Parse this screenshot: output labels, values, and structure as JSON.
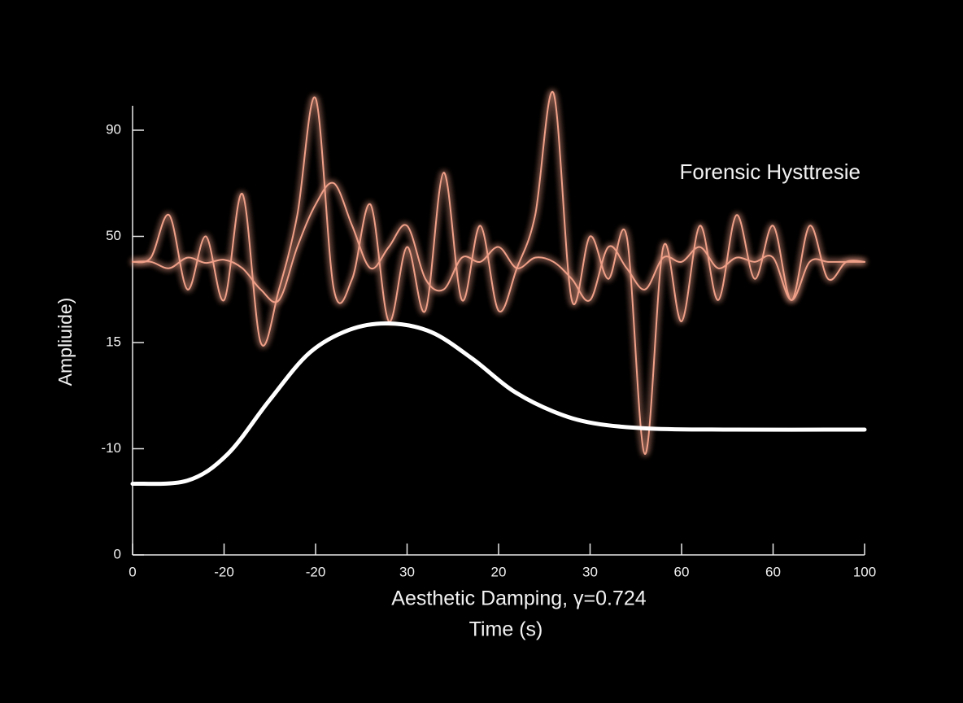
{
  "chart_data": {
    "type": "line",
    "annotation": "Forensic Hysttresie",
    "subtitle": "Aesthetic Damping, γ=0.724",
    "xlabel": "Time (s)",
    "ylabel": "Ampliuide)",
    "xlim": [
      0,
      8
    ],
    "xticks": [
      0,
      {
        "value": 1,
        "label": "-20"
      },
      {
        "value": 2,
        "label": "-20"
      },
      {
        "value": 3,
        "label": "30"
      },
      {
        "value": 4,
        "label": "20"
      },
      {
        "value": 5,
        "label": "30"
      },
      {
        "value": 6,
        "label": "60"
      },
      {
        "value": 7,
        "label": "60"
      },
      {
        "value": 8,
        "label": "100"
      }
    ],
    "ylim": [
      0,
      4
    ],
    "yticks": [
      0,
      {
        "value": 1,
        "label": "-10"
      },
      {
        "value": 2,
        "label": "15"
      },
      {
        "value": 3,
        "label": "50"
      },
      {
        "value": 4,
        "label": "90"
      }
    ],
    "series": [
      {
        "color": "#f0a088",
        "glow": true,
        "x": [
          0,
          0.2,
          0.4,
          0.6,
          0.8,
          1.0,
          1.2,
          1.4,
          1.6,
          1.8,
          2.0,
          2.2,
          2.4,
          2.6,
          2.8,
          3.0,
          3.2,
          3.4,
          3.6,
          3.8,
          4.0,
          4.2,
          4.4,
          4.6,
          4.8,
          5.0,
          5.2,
          5.4,
          5.6,
          5.8,
          6.0,
          6.2,
          6.4,
          6.6,
          6.8,
          7.0,
          7.2,
          7.4,
          7.6,
          7.8,
          8.0
        ],
        "values": [
          2.76,
          2.8,
          3.2,
          2.5,
          3.0,
          2.4,
          3.4,
          2.0,
          2.5,
          3.2,
          4.3,
          2.5,
          2.6,
          3.3,
          2.2,
          2.9,
          2.3,
          3.6,
          2.4,
          3.1,
          2.3,
          2.7,
          3.2,
          4.35,
          2.4,
          3.0,
          2.6,
          3.0,
          0.95,
          2.9,
          2.2,
          3.1,
          2.4,
          3.2,
          2.6,
          3.1,
          2.4,
          3.1,
          2.6,
          2.76,
          2.76
        ]
      },
      {
        "color": "#f0a088",
        "glow": true,
        "x": [
          0,
          0.2,
          0.4,
          0.6,
          0.8,
          1.0,
          1.2,
          1.4,
          1.6,
          1.8,
          2.0,
          2.2,
          2.4,
          2.6,
          2.8,
          3.0,
          3.2,
          3.4,
          3.6,
          3.8,
          4.0,
          4.2,
          4.4,
          4.6,
          4.8,
          5.0,
          5.2,
          5.4,
          5.6,
          5.8,
          6.0,
          6.2,
          6.4,
          6.6,
          6.8,
          7.0,
          7.2,
          7.4,
          7.6,
          7.8,
          8.0
        ],
        "values": [
          2.76,
          2.76,
          2.7,
          2.8,
          2.75,
          2.78,
          2.7,
          2.5,
          2.4,
          2.9,
          3.3,
          3.5,
          3.1,
          2.7,
          2.9,
          3.1,
          2.6,
          2.5,
          2.8,
          2.76,
          2.9,
          2.7,
          2.8,
          2.76,
          2.6,
          2.4,
          2.9,
          2.7,
          2.5,
          2.8,
          2.76,
          2.9,
          2.7,
          2.8,
          2.76,
          2.8,
          2.4,
          2.76,
          2.76,
          2.76,
          2.76
        ]
      },
      {
        "color": "#ffffff",
        "glow": false,
        "x": [
          0,
          0.6,
          1.04,
          1.49,
          1.93,
          2.37,
          2.8,
          3.26,
          3.71,
          4.15,
          4.6,
          5.04,
          5.66,
          6.55,
          8.0
        ],
        "values": [
          0.67,
          0.7,
          0.95,
          1.45,
          1.9,
          2.12,
          2.18,
          2.1,
          1.85,
          1.55,
          1.35,
          1.24,
          1.19,
          1.18,
          1.18
        ]
      }
    ]
  }
}
